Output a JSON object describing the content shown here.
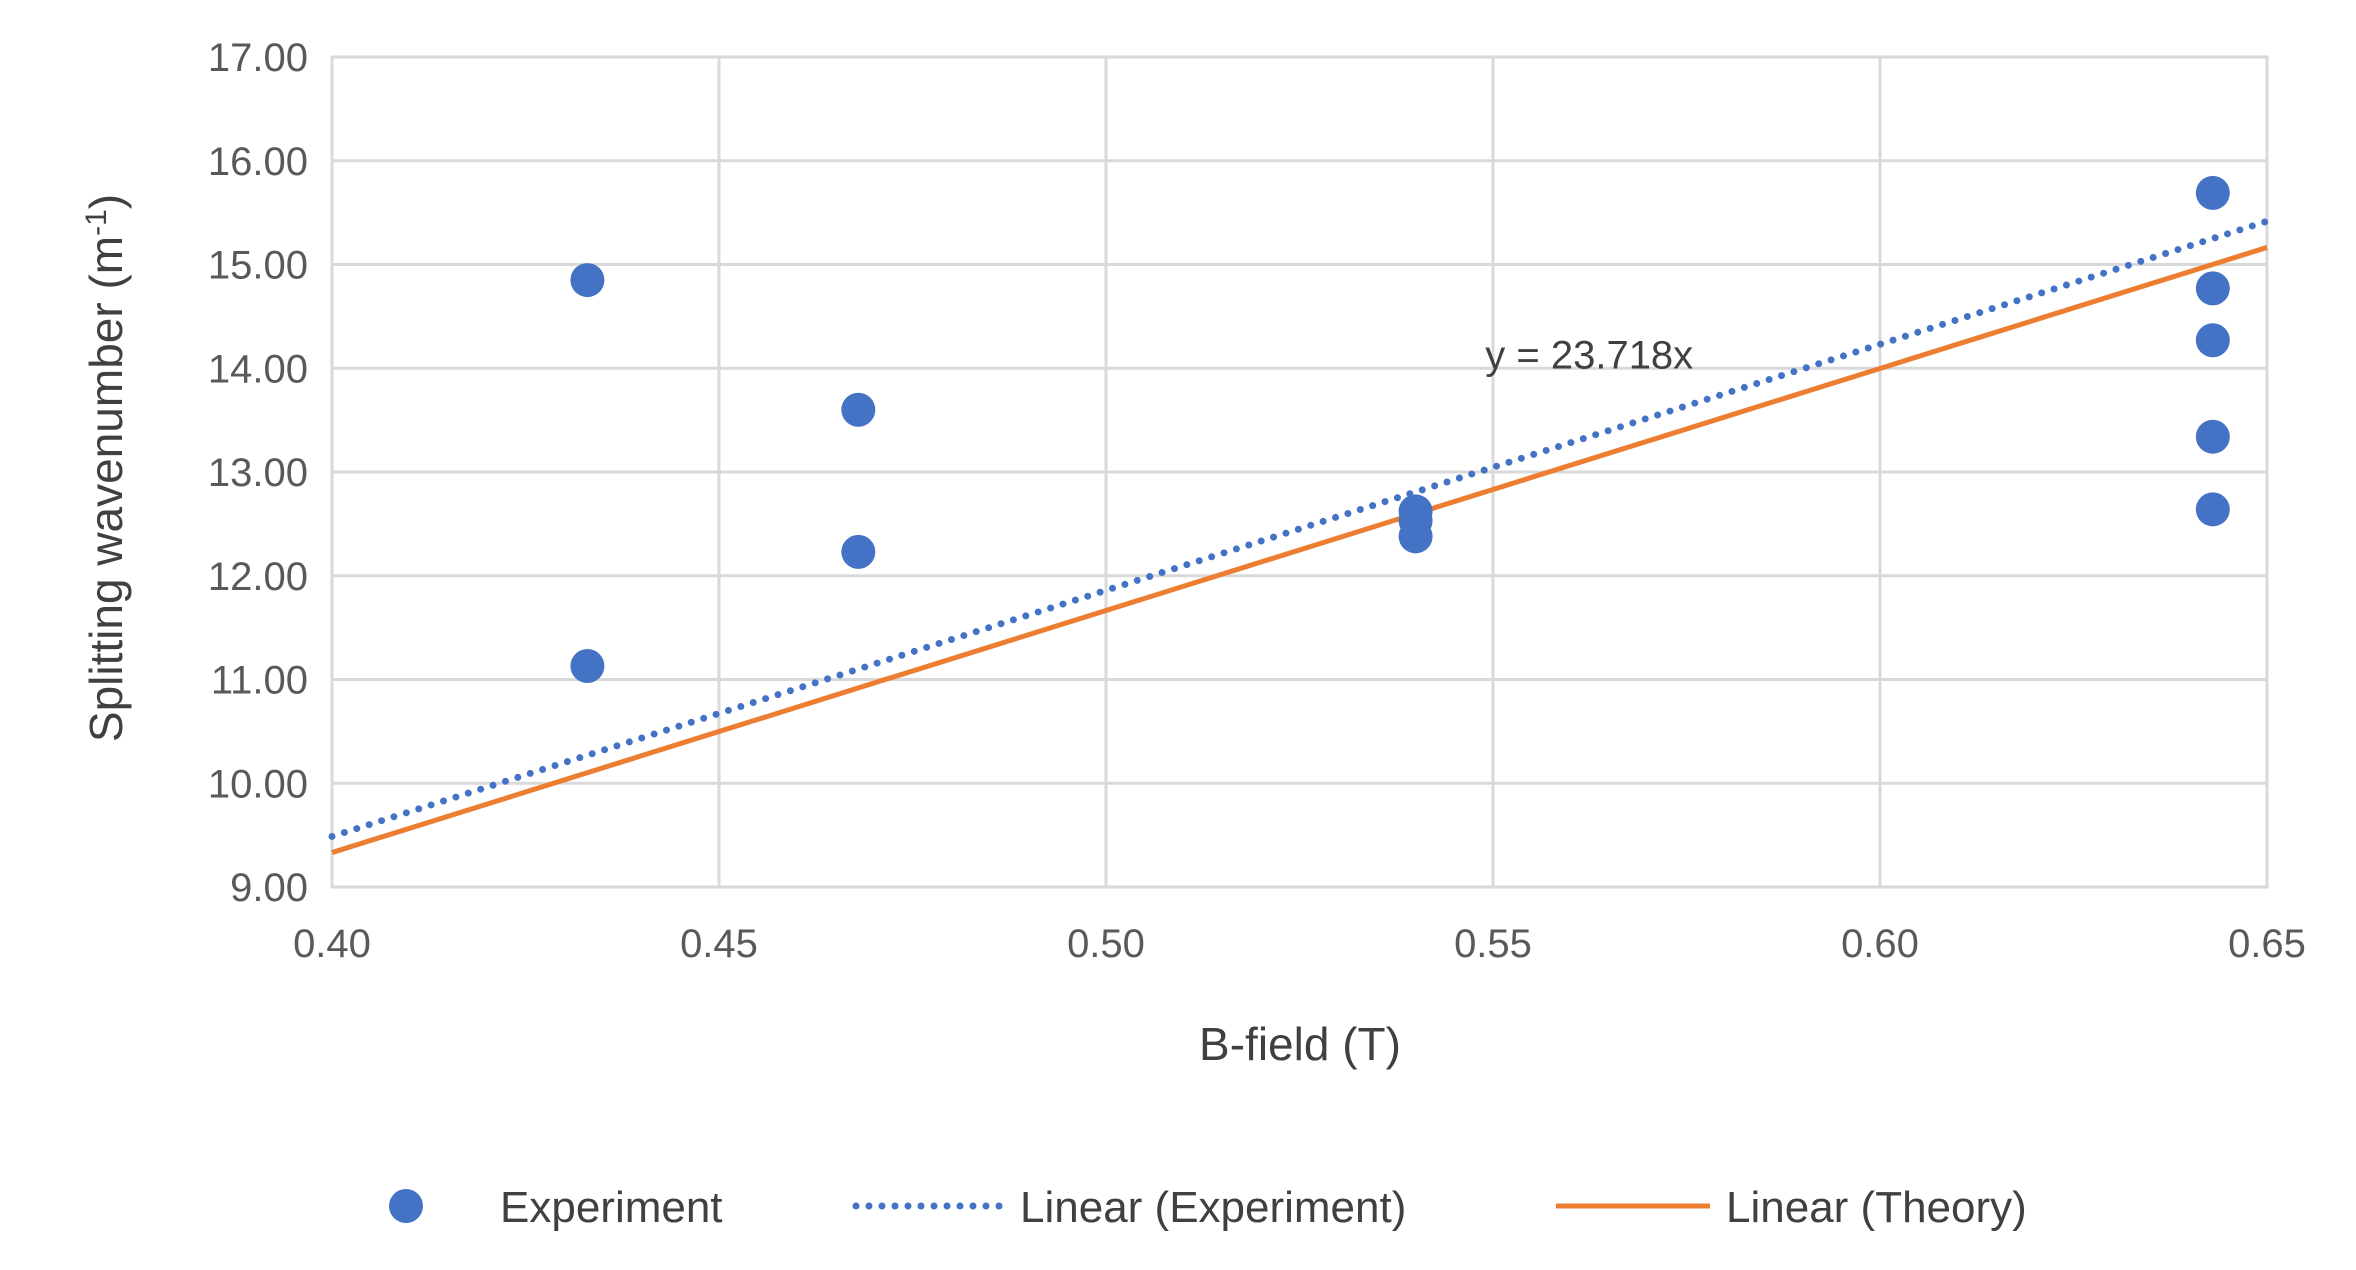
{
  "chart_data": {
    "type": "scatter",
    "xlabel": "B-field (T)",
    "ylabel": "Splitting wavenumber (m",
    "ylabel_sup": "-1",
    "ylabel_end": ")",
    "xlim": [
      0.4,
      0.65
    ],
    "ylim": [
      9.0,
      17.0
    ],
    "xticks": [
      "0.40",
      "0.45",
      "0.50",
      "0.55",
      "0.60",
      "0.65"
    ],
    "yticks": [
      "9.00",
      "10.00",
      "11.00",
      "12.00",
      "13.00",
      "14.00",
      "15.00",
      "16.00",
      "17.00"
    ],
    "grid": true,
    "legend_position": "bottom",
    "series": [
      {
        "name": "Experiment",
        "kind": "scatter",
        "color": "#4472c4",
        "points": [
          {
            "x": 0.433,
            "y": 14.85
          },
          {
            "x": 0.433,
            "y": 11.13
          },
          {
            "x": 0.468,
            "y": 13.6
          },
          {
            "x": 0.468,
            "y": 12.23
          },
          {
            "x": 0.54,
            "y": 12.62
          },
          {
            "x": 0.54,
            "y": 12.53
          },
          {
            "x": 0.54,
            "y": 12.38
          },
          {
            "x": 0.643,
            "y": 15.69
          },
          {
            "x": 0.643,
            "y": 14.77
          },
          {
            "x": 0.643,
            "y": 14.27
          },
          {
            "x": 0.643,
            "y": 13.34
          },
          {
            "x": 0.643,
            "y": 12.64
          }
        ]
      },
      {
        "name": "Linear (Experiment)",
        "kind": "line",
        "style": "dotted",
        "color": "#4472c4",
        "slope": 23.718
      },
      {
        "name": "Linear (Theory)",
        "kind": "line",
        "style": "solid",
        "color": "#ed7d31",
        "slope": 23.33
      }
    ],
    "annotations": [
      {
        "text": "y = 23.718x",
        "x": 0.549,
        "y": 14.0
      }
    ]
  }
}
